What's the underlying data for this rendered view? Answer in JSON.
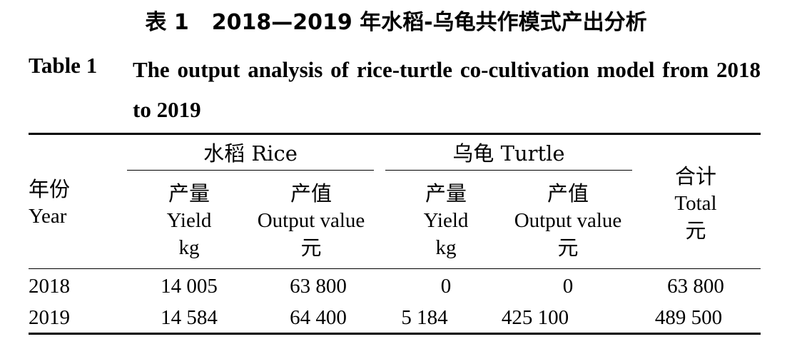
{
  "caption": {
    "cn_label": "表 1",
    "cn_title": "2018—2019 年水稻-乌龟共作模式产出分析",
    "en_label": "Table 1",
    "en_title": "The output analysis of rice-turtle co-cultivation model from 2018 to 2019"
  },
  "table": {
    "header": {
      "year_cn": "年份",
      "year_en": "Year",
      "rice_group": "水稻 Rice",
      "turtle_group": "乌龟 Turtle",
      "yield_cn": "产量",
      "yield_en": "Yield",
      "yield_unit": "kg",
      "value_cn": "产值",
      "value_en": "Output value",
      "value_unit": "元",
      "total_cn": "合计",
      "total_en": "Total",
      "total_unit": "元"
    },
    "rows": [
      {
        "year": "2018",
        "rice_yield": "14 005",
        "rice_value": "63 800",
        "turtle_yield": "0",
        "turtle_value": "0",
        "total": "63 800"
      },
      {
        "year": "2019",
        "rice_yield": "14 584",
        "rice_value": "64 400",
        "turtle_yield": "5 184",
        "turtle_value": "425 100",
        "total": "489 500"
      }
    ]
  }
}
